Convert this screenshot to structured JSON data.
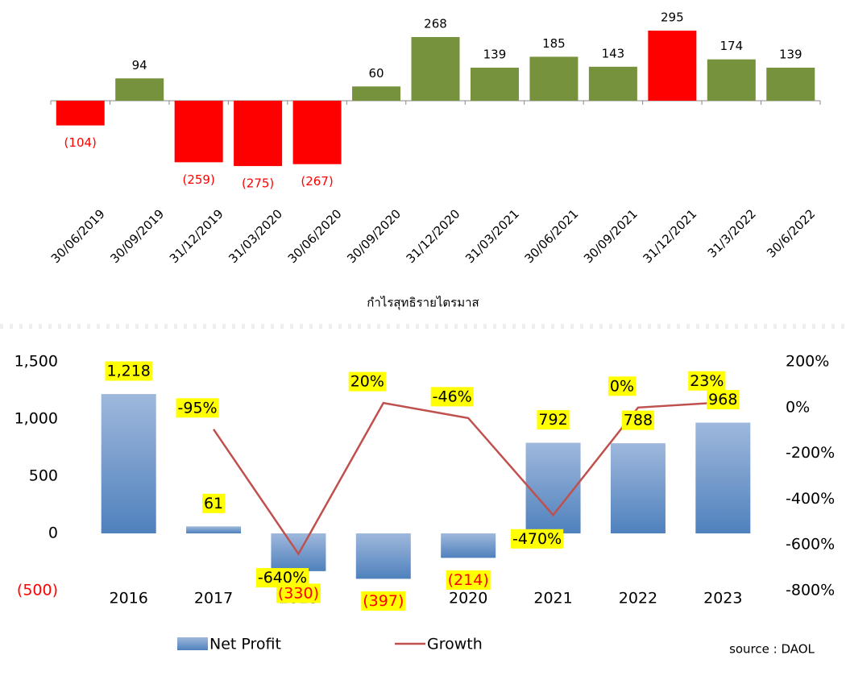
{
  "chart_data": [
    {
      "type": "bar",
      "categories": [
        "30/06/2019",
        "30/09/2019",
        "31/12/2019",
        "31/03/2020",
        "30/06/2020",
        "30/09/2020",
        "31/12/2020",
        "31/03/2021",
        "30/06/2021",
        "30/09/2021",
        "31/12/2021",
        "31/3/2022",
        "30/6/2022"
      ],
      "values": [
        -104,
        94,
        -259,
        -275,
        -267,
        60,
        268,
        139,
        185,
        143,
        295,
        174,
        139
      ],
      "value_labels": [
        "(104)",
        "94",
        "(259)",
        "(275)",
        "(267)",
        "60",
        "268",
        "139",
        "185",
        "143",
        "295",
        "174",
        "139"
      ],
      "colors": [
        "#ff0000",
        "#76923c",
        "#ff0000",
        "#ff0000",
        "#ff0000",
        "#76923c",
        "#76923c",
        "#76923c",
        "#76923c",
        "#76923c",
        "#ff0000",
        "#76923c",
        "#76923c"
      ],
      "xlabel": "กำไรสุทธิรายไตรมาส"
    },
    {
      "type": "bar_line",
      "categories": [
        "2016",
        "2017",
        "2018",
        "2019",
        "2020",
        "2021",
        "2022",
        "2023"
      ],
      "series": [
        {
          "name": "Net Profit",
          "type": "bar",
          "color": "#4f81bd",
          "values": [
            1218,
            61,
            -330,
            -397,
            -214,
            792,
            788,
            968
          ],
          "value_labels": [
            "1,218",
            "61",
            "(330)",
            "(397)",
            "(214)",
            "792",
            "788",
            "968"
          ]
        },
        {
          "name": "Growth",
          "type": "line",
          "axis": "y2",
          "color": "#c0504d",
          "values": [
            null,
            -95,
            -640,
            20,
            -46,
            -470,
            0,
            23
          ],
          "value_labels": [
            null,
            "-95%",
            "-640%",
            "20%",
            "-46%",
            "-470%",
            "0%",
            "23%"
          ]
        }
      ],
      "ylim": [
        -500,
        1500
      ],
      "yticks": [
        {
          "value": -500,
          "label": "(500)"
        },
        0,
        500,
        {
          "value": 1000,
          "label": "1,000"
        },
        {
          "value": 1500,
          "label": "1,500"
        }
      ],
      "y2lim": [
        -800,
        200
      ],
      "y2ticks": [
        {
          "value": -800,
          "label": "-800%"
        },
        {
          "value": -600,
          "label": "-600%"
        },
        {
          "value": -400,
          "label": "-400%"
        },
        {
          "value": -200,
          "label": "-200%"
        },
        {
          "value": 0,
          "label": "0%"
        },
        {
          "value": 200,
          "label": "200%"
        }
      ],
      "annotation": "source : DAOL"
    }
  ]
}
